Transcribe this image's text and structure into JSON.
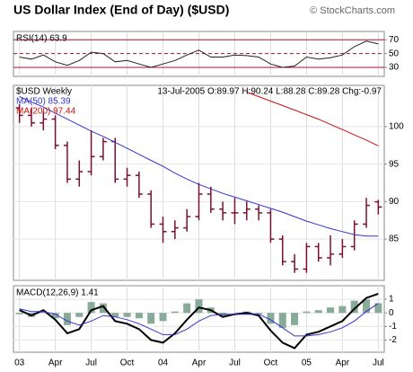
{
  "chart_data": [
    {
      "type": "line",
      "title": "RSI(14) 63.9",
      "color": "#222222",
      "guide_color": "#aa1133",
      "values": [
        45,
        42,
        48,
        38,
        33,
        40,
        52,
        50,
        38,
        40,
        35,
        30,
        35,
        40,
        48,
        55,
        45,
        45,
        48,
        47,
        45,
        35,
        30,
        32,
        45,
        42,
        44,
        48,
        60,
        68,
        63.9
      ],
      "ylim": [
        17,
        82
      ],
      "yticks": [
        30,
        50,
        70
      ]
    },
    {
      "type": "ohlc",
      "title": "US Dollar Index (End of Day) ($USD)",
      "credit": "© StockCharts.com",
      "subtitle": "$USD Weekly",
      "annotation": "13-Jul-2005 O:89.97 H:90.24 L:88.28 C:89.28 Chg:-0.97",
      "color": "#7a1030",
      "open": [
        102.5,
        101.5,
        100.5,
        101,
        97.5,
        93,
        94,
        96,
        98,
        93,
        93.5,
        91,
        87,
        86,
        86.5,
        88,
        91,
        89,
        88.5,
        88.5,
        89,
        88.5,
        85,
        82,
        81,
        84,
        82.5,
        83,
        84,
        87,
        89.97
      ],
      "high": [
        103,
        102.5,
        102,
        101.5,
        98,
        95.5,
        99.5,
        98.5,
        98.5,
        94.5,
        94,
        91.5,
        88,
        87.5,
        89,
        92.5,
        92,
        90,
        90.5,
        90,
        89.5,
        89,
        85.5,
        83,
        84.5,
        84.5,
        85.5,
        85,
        87.5,
        90.5,
        90.24
      ],
      "low": [
        100.5,
        100,
        99.5,
        97,
        92.5,
        92,
        93.5,
        95.5,
        92.5,
        92,
        90.5,
        86.5,
        84.5,
        85,
        86,
        87.5,
        88.5,
        87.5,
        87,
        87.5,
        87.5,
        84.5,
        81.5,
        80.5,
        80.5,
        82,
        81.5,
        82.5,
        83.5,
        86.5,
        88.28
      ],
      "close": [
        101.5,
        100.5,
        101,
        97.5,
        93,
        94,
        96,
        98,
        93,
        93.5,
        91,
        87,
        86,
        86.5,
        88,
        91,
        89,
        88.5,
        88.5,
        89,
        88.5,
        85,
        82,
        81,
        84,
        82.5,
        83,
        84,
        87,
        89.5,
        89.28
      ],
      "series": [
        {
          "name": "MA(50) 85.39",
          "color": "#3333cc",
          "values": [
            104,
            103.3,
            102.6,
            101.8,
            101,
            100.2,
            99.4,
            98.7,
            97.9,
            97.1,
            96.3,
            95.5,
            94.7,
            93.8,
            93,
            92.3,
            91.7,
            91.1,
            90.6,
            90.1,
            89.6,
            89.1,
            88.6,
            88,
            87.4,
            86.9,
            86.4,
            86,
            85.6,
            85.4,
            85.39
          ]
        },
        {
          "name": "MA(200) 97.44",
          "color": "#cc1111",
          "values": [
            null,
            null,
            null,
            null,
            null,
            null,
            null,
            null,
            null,
            null,
            null,
            null,
            null,
            null,
            null,
            null,
            null,
            null,
            null,
            104.6,
            104,
            103.4,
            102.8,
            102.2,
            101.6,
            101,
            100.3,
            99.6,
            98.9,
            98.2,
            97.44
          ]
        }
      ],
      "ylim": [
        79.5,
        105.5
      ],
      "yticks": [
        85,
        90,
        95,
        100
      ],
      "grid": true
    },
    {
      "type": "line",
      "title": "MACD(12,26,9) 1.41",
      "categories": [
        "03",
        null,
        null,
        "Apr",
        null,
        null,
        "Jul",
        null,
        null,
        "Oct",
        null,
        null,
        "04",
        null,
        null,
        "Apr",
        null,
        null,
        "Jul",
        null,
        null,
        "Oct",
        null,
        null,
        "05",
        null,
        null,
        "Apr",
        null,
        null,
        "Jul"
      ],
      "histogram": {
        "color": "#88aa99",
        "values": [
          -0.1,
          -0.3,
          0.1,
          -0.4,
          -0.9,
          -0.3,
          0.8,
          0.7,
          -0.3,
          -0.3,
          -0.4,
          -0.8,
          -0.6,
          0.1,
          0.7,
          1.0,
          0.4,
          -0.2,
          0,
          0.1,
          -0.1,
          -0.8,
          -1.1,
          -0.9,
          0.1,
          0.2,
          0.4,
          0.5,
          0.9,
          1.0,
          0.71
        ]
      },
      "series": [
        {
          "color": "#000000",
          "values": [
            0.2,
            -0.2,
            0.2,
            -0.5,
            -1.5,
            -1.2,
            0.2,
            0.5,
            -0.6,
            -0.8,
            -1.2,
            -2,
            -2.2,
            -1.5,
            -0.5,
            0.4,
            0.2,
            -0.3,
            -0.1,
            0,
            -0.2,
            -1.3,
            -2.2,
            -2.6,
            -1.6,
            -1.4,
            -1,
            -0.6,
            0.3,
            1.1,
            1.41
          ]
        },
        {
          "color": "#3333cc",
          "values": [
            0.3,
            0.1,
            0.1,
            -0.1,
            -0.6,
            -0.9,
            -0.6,
            -0.2,
            -0.3,
            -0.5,
            -0.8,
            -1.2,
            -1.6,
            -1.6,
            -1.2,
            -0.6,
            -0.2,
            -0.1,
            -0.1,
            -0.1,
            -0.1,
            -0.5,
            -1.1,
            -1.7,
            -1.7,
            -1.6,
            -1.4,
            -1.1,
            -0.6,
            0.1,
            0.7
          ]
        }
      ],
      "ylim": [
        -2.9,
        2
      ],
      "yticks": [
        1,
        0,
        -1,
        -2
      ]
    }
  ]
}
